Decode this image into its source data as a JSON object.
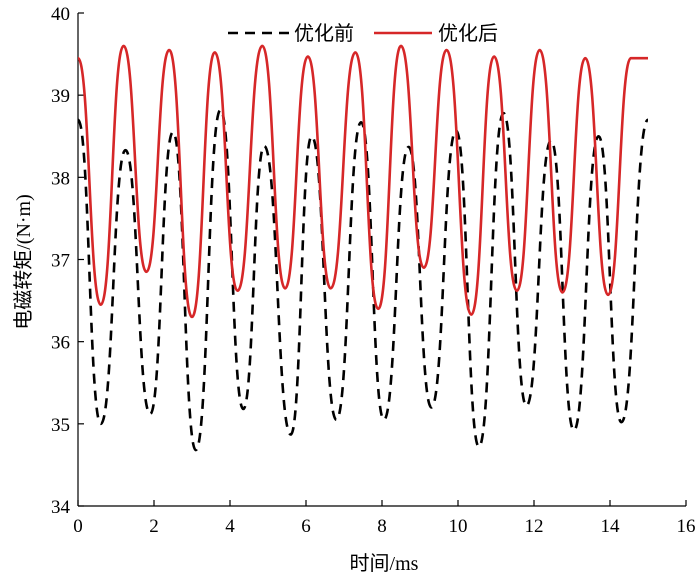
{
  "chart_data": {
    "type": "line",
    "xlabel": "时间/ms",
    "ylabel": "电磁转矩/(N·m)",
    "xlim": [
      0,
      16
    ],
    "ylim": [
      34,
      40
    ],
    "xticks": [
      "0",
      "2",
      "4",
      "6",
      "8",
      "10",
      "12",
      "14",
      "16"
    ],
    "yticks": [
      "34",
      "35",
      "36",
      "37",
      "38",
      "39",
      "40"
    ],
    "legend_position": "top",
    "grid": false,
    "series": [
      {
        "name": "优化前",
        "color": "#000000",
        "style": "dashed",
        "x": [
          0.0,
          0.6,
          1.25,
          1.9,
          2.5,
          3.1,
          3.75,
          4.35,
          4.9,
          5.6,
          6.15,
          6.8,
          7.45,
          8.05,
          8.7,
          9.3,
          9.95,
          10.55,
          11.2,
          11.8,
          12.45,
          13.05,
          13.7,
          14.3,
          15.0
        ],
        "y": [
          38.7,
          35.0,
          38.33,
          35.12,
          38.55,
          34.68,
          38.82,
          35.18,
          38.38,
          34.87,
          38.5,
          35.05,
          38.67,
          35.05,
          38.37,
          35.2,
          38.57,
          34.72,
          38.78,
          35.22,
          38.45,
          34.92,
          38.5,
          35.02,
          38.7
        ]
      },
      {
        "name": "优化后",
        "color": "#d62728",
        "style": "solid",
        "x": [
          0.0,
          0.6,
          1.2,
          1.8,
          2.4,
          3.0,
          3.6,
          4.2,
          4.85,
          5.45,
          6.05,
          6.65,
          7.3,
          7.9,
          8.5,
          9.1,
          9.7,
          10.35,
          10.95,
          11.55,
          12.15,
          12.75,
          13.35,
          13.95,
          14.55,
          15.0
        ],
        "y": [
          39.45,
          36.45,
          39.6,
          36.85,
          39.55,
          36.3,
          39.52,
          36.62,
          39.6,
          36.65,
          39.47,
          36.65,
          39.52,
          36.4,
          39.6,
          36.9,
          39.55,
          36.33,
          39.47,
          36.62,
          39.55,
          36.6,
          39.45,
          36.57,
          39.45,
          39.45
        ]
      }
    ]
  }
}
